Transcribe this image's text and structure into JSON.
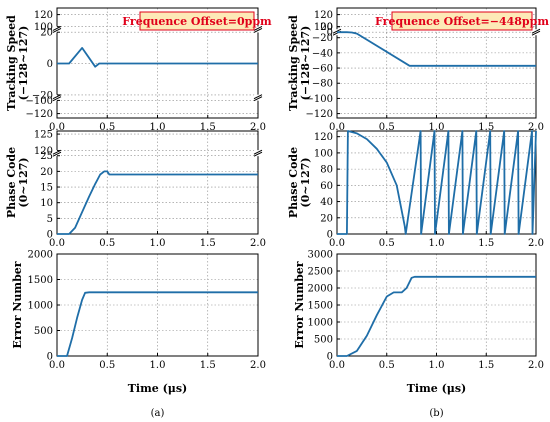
{
  "line_color": "#1f6ea8",
  "annotation_fill": "#fde9b7",
  "annotation_stroke": "#e0001a",
  "chart_data": [
    {
      "id": "a-speed",
      "type": "line",
      "xlim": [
        0,
        2
      ],
      "ylim": [
        -120,
        120
      ],
      "axis_break": true,
      "ylabel": [
        "Tracking Speed",
        "(−128~127)"
      ],
      "yticks": [
        {
          "v": -120,
          "label": "−120"
        },
        {
          "v": -100,
          "label": "−100"
        },
        {
          "v": -20,
          "label": "−20"
        },
        {
          "v": 0,
          "label": "0"
        },
        {
          "v": 20,
          "label": "20"
        },
        {
          "v": 100,
          "label": "100"
        },
        {
          "v": 120,
          "label": "120"
        }
      ],
      "xticks": [
        {
          "v": 0,
          "label": "0.0"
        },
        {
          "v": 0.5,
          "label": "0.5"
        },
        {
          "v": 1,
          "label": "1.0"
        },
        {
          "v": 1.5,
          "label": "1.5"
        },
        {
          "v": 2,
          "label": "2.0"
        }
      ],
      "annotation": "Frequence Offset=0ppm",
      "annotation_pos": "top-right",
      "series": [
        {
          "x": [
            0,
            0.12,
            0.25,
            0.38,
            0.42,
            0.47,
            2.0
          ],
          "y": [
            0,
            0,
            10,
            -2,
            0,
            0,
            0
          ]
        }
      ]
    },
    {
      "id": "a-phase",
      "type": "line",
      "xlim": [
        0,
        2
      ],
      "ylim": [
        0,
        127
      ],
      "axis_break": true,
      "ylabel": [
        "Phase Code",
        "(0~127)"
      ],
      "yticks": [
        {
          "v": 0,
          "label": "0"
        },
        {
          "v": 5,
          "label": "5"
        },
        {
          "v": 10,
          "label": "10"
        },
        {
          "v": 15,
          "label": "15"
        },
        {
          "v": 20,
          "label": "20"
        },
        {
          "v": 25,
          "label": "25"
        },
        {
          "v": 120,
          "label": "120"
        },
        {
          "v": 125,
          "label": "125"
        }
      ],
      "xticks": [
        {
          "v": 0,
          "label": "0.0"
        },
        {
          "v": 0.5,
          "label": "0.5"
        },
        {
          "v": 1,
          "label": "1.0"
        },
        {
          "v": 1.5,
          "label": "1.5"
        },
        {
          "v": 2,
          "label": "2.0"
        }
      ],
      "series": [
        {
          "x": [
            0,
            0.12,
            0.18,
            0.25,
            0.32,
            0.38,
            0.43,
            0.47,
            0.5,
            0.52,
            2.0
          ],
          "y": [
            0,
            0,
            2,
            7,
            12,
            16,
            19,
            20,
            20,
            19,
            19
          ]
        }
      ]
    },
    {
      "id": "a-error",
      "type": "line",
      "xlim": [
        0,
        2
      ],
      "ylim": [
        0,
        2000
      ],
      "axis_break": false,
      "ylabel": [
        "Error Number"
      ],
      "yticks": [
        {
          "v": 0,
          "label": "0"
        },
        {
          "v": 500,
          "label": "500"
        },
        {
          "v": 1000,
          "label": "1000"
        },
        {
          "v": 1500,
          "label": "1500"
        },
        {
          "v": 2000,
          "label": "2000"
        }
      ],
      "xticks": [
        {
          "v": 0,
          "label": "0.0"
        },
        {
          "v": 0.5,
          "label": "0.5"
        },
        {
          "v": 1,
          "label": "1.0"
        },
        {
          "v": 1.5,
          "label": "1.5"
        },
        {
          "v": 2,
          "label": "2.0"
        }
      ],
      "xlabel": "Time (μs)",
      "panel_label": "(a)",
      "series": [
        {
          "x": [
            0,
            0.1,
            0.15,
            0.2,
            0.25,
            0.28,
            0.32,
            2.0
          ],
          "y": [
            0,
            0,
            350,
            750,
            1100,
            1240,
            1250,
            1250
          ]
        }
      ]
    },
    {
      "id": "b-speed",
      "type": "line",
      "xlim": [
        0,
        2
      ],
      "ylim": [
        -120,
        120
      ],
      "axis_break": true,
      "ylabel": [
        "Tracking Speed",
        "(−128~127)"
      ],
      "yticks": [
        {
          "v": -120,
          "label": "−120"
        },
        {
          "v": -100,
          "label": "−100"
        },
        {
          "v": -80,
          "label": "−80"
        },
        {
          "v": -60,
          "label": "−60"
        },
        {
          "v": -40,
          "label": "−40"
        },
        {
          "v": -20,
          "label": "−20"
        },
        {
          "v": 0,
          "label": "0"
        },
        {
          "v": 20,
          "label": "20"
        },
        {
          "v": 100,
          "label": "100"
        },
        {
          "v": 120,
          "label": "120"
        }
      ],
      "xticks": [
        {
          "v": 0,
          "label": "0.0"
        },
        {
          "v": 0.5,
          "label": "0.5"
        },
        {
          "v": 1,
          "label": "1.0"
        },
        {
          "v": 1.5,
          "label": "1.5"
        },
        {
          "v": 2,
          "label": "2.0"
        }
      ],
      "annotation": "Frequence Offset=−448ppm",
      "annotation_pos": "top-right",
      "series": [
        {
          "x": [
            0,
            0.1,
            0.15,
            0.2,
            0.73,
            0.75,
            2.0
          ],
          "y": [
            0,
            0,
            -1,
            -5,
            -57,
            -57,
            -57
          ]
        }
      ]
    },
    {
      "id": "b-phase",
      "type": "line",
      "xlim": [
        0,
        2
      ],
      "ylim": [
        0,
        127
      ],
      "axis_break": false,
      "ylabel": [
        "Phase Code",
        "(0~127)"
      ],
      "yticks": [
        {
          "v": 0,
          "label": "0"
        },
        {
          "v": 20,
          "label": "20"
        },
        {
          "v": 40,
          "label": "40"
        },
        {
          "v": 60,
          "label": "60"
        },
        {
          "v": 80,
          "label": "80"
        },
        {
          "v": 100,
          "label": "100"
        },
        {
          "v": 120,
          "label": "120"
        }
      ],
      "xticks": [
        {
          "v": 0,
          "label": "0.0"
        },
        {
          "v": 0.5,
          "label": "0.5"
        },
        {
          "v": 1,
          "label": "1.0"
        },
        {
          "v": 1.5,
          "label": "1.5"
        },
        {
          "v": 2,
          "label": "2.0"
        }
      ],
      "series": [
        {
          "x": [
            0,
            0.1,
            0.11,
            0.2,
            0.3,
            0.4,
            0.5,
            0.6,
            0.68,
            0.69,
            0.84,
            0.845,
            0.98,
            0.985,
            1.12,
            1.125,
            1.26,
            1.265,
            1.4,
            1.405,
            1.54,
            1.545,
            1.68,
            1.685,
            1.82,
            1.825,
            1.96,
            1.965,
            2.0
          ],
          "y": [
            0,
            0,
            127,
            124,
            117,
            105,
            88,
            60,
            10,
            0,
            127,
            0,
            127,
            0,
            127,
            0,
            127,
            0,
            127,
            0,
            127,
            0,
            127,
            0,
            127,
            0,
            127,
            0,
            127
          ]
        }
      ]
    },
    {
      "id": "b-error",
      "type": "line",
      "xlim": [
        0,
        2
      ],
      "ylim": [
        0,
        3000
      ],
      "axis_break": false,
      "ylabel": [
        "Error Number"
      ],
      "yticks": [
        {
          "v": 0,
          "label": "0"
        },
        {
          "v": 500,
          "label": "500"
        },
        {
          "v": 1000,
          "label": "1000"
        },
        {
          "v": 1500,
          "label": "1500"
        },
        {
          "v": 2000,
          "label": "2000"
        },
        {
          "v": 2500,
          "label": "2500"
        },
        {
          "v": 3000,
          "label": "3000"
        }
      ],
      "xticks": [
        {
          "v": 0,
          "label": "0.0"
        },
        {
          "v": 0.5,
          "label": "0.5"
        },
        {
          "v": 1,
          "label": "1.0"
        },
        {
          "v": 1.5,
          "label": "1.5"
        },
        {
          "v": 2,
          "label": "2.0"
        }
      ],
      "xlabel": "Time (μs)",
      "panel_label": "(b)",
      "series": [
        {
          "x": [
            0,
            0.1,
            0.2,
            0.3,
            0.4,
            0.5,
            0.57,
            0.65,
            0.7,
            0.75,
            0.78,
            2.0
          ],
          "y": [
            0,
            0,
            150,
            600,
            1200,
            1750,
            1870,
            1870,
            2000,
            2300,
            2330,
            2330
          ]
        }
      ]
    }
  ]
}
